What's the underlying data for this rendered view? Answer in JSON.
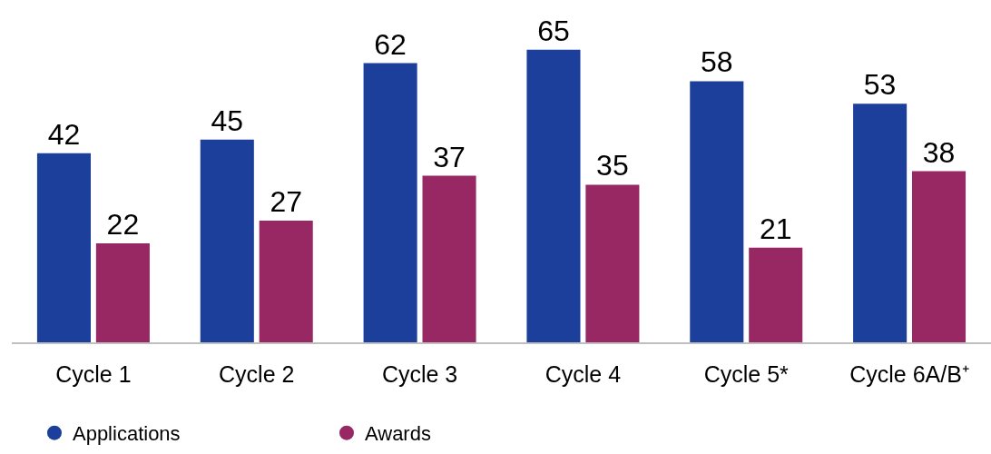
{
  "chart_data": {
    "type": "bar",
    "categories": [
      "Cycle 1",
      "Cycle 2",
      "Cycle 3",
      "Cycle 4",
      "Cycle 5*",
      "Cycle 6A/B⁺"
    ],
    "series": [
      {
        "name": "Applications",
        "color": "#1c3f9c",
        "values": [
          42,
          45,
          62,
          65,
          58,
          53
        ]
      },
      {
        "name": "Awards",
        "color": "#982864",
        "values": [
          22,
          27,
          37,
          35,
          21,
          38
        ]
      }
    ],
    "data_labels": true,
    "legend": "bottom",
    "tick_labels": "x"
  }
}
